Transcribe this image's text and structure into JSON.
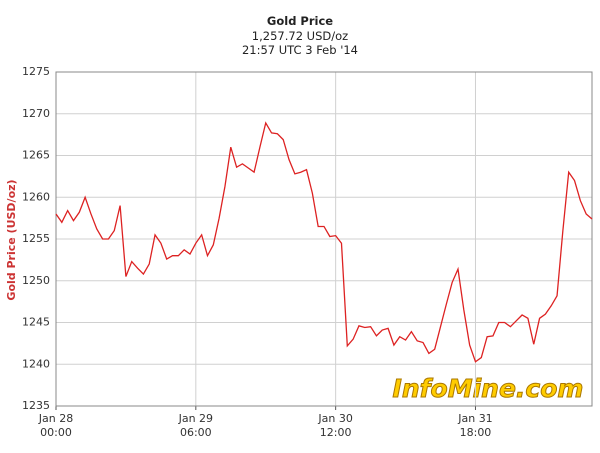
{
  "chart_data": {
    "type": "line",
    "title": "Gold Price",
    "subtitle": "1,257.72 USD/oz",
    "timestamp": "21:57 UTC 3 Feb '14",
    "y_label": "Gold Price (USD/oz)",
    "watermark": "InfoMine.com",
    "categories": [
      "Jan 28\n00:00",
      null,
      null,
      null,
      null,
      null,
      null,
      null,
      null,
      null,
      null,
      null,
      null,
      null,
      null,
      null,
      null,
      null,
      null,
      null,
      null,
      null,
      null,
      null,
      "Jan 29\n06:00",
      null,
      null,
      null,
      null,
      null,
      null,
      null,
      null,
      null,
      null,
      null,
      null,
      null,
      null,
      null,
      null,
      null,
      null,
      null,
      null,
      null,
      null,
      null,
      "Jan 30\n12:00",
      null,
      null,
      null,
      null,
      null,
      null,
      null,
      null,
      null,
      null,
      null,
      null,
      null,
      null,
      null,
      null,
      null,
      null,
      null,
      null,
      null,
      null,
      null,
      "Jan 31\n18:00",
      null,
      null,
      null,
      null,
      null,
      null,
      null,
      null,
      null,
      null,
      null,
      null,
      null,
      null,
      null,
      null,
      null,
      null,
      null,
      null
    ],
    "series": [
      {
        "name": "Gold Price",
        "color": "#dd2222",
        "values": [
          1258,
          1257,
          1258.4,
          1257.2,
          1258.2,
          1260.0,
          1258,
          1256.2,
          1255,
          1255,
          1256,
          1259,
          1250.5,
          1252.3,
          1251.5,
          1250.8,
          1252,
          1255.5,
          1254.5,
          1252.6,
          1253,
          1253,
          1253.7,
          1253.2,
          1254.5,
          1255.5,
          1253,
          1254.3,
          1257.5,
          1261.3,
          1266,
          1263.6,
          1264,
          1263.5,
          1263,
          1266,
          1268.9,
          1267.7,
          1267.6,
          1266.9,
          1264.5,
          1262.8,
          1263,
          1263.3,
          1260.5,
          1256.5,
          1256.5,
          1255.3,
          1255.4,
          1254.5,
          1242.2,
          1243,
          1244.6,
          1244.4,
          1244.5,
          1243.4,
          1244.1,
          1244.3,
          1242.3,
          1243.3,
          1242.9,
          1243.9,
          1242.8,
          1242.6,
          1241.3,
          1241.8,
          1244.5,
          1247.2,
          1249.8,
          1251.4,
          1246.5,
          1242.3,
          1240.3,
          1240.8,
          1243.3,
          1243.4,
          1245,
          1245,
          1244.5,
          1245.2,
          1245.9,
          1245.5,
          1242.4,
          1245.5,
          1246,
          1247,
          1248.2,
          1256,
          1263,
          1262,
          1259.6,
          1258,
          1257.4
        ]
      }
    ],
    "ylim": [
      1235,
      1275
    ],
    "yticks": [
      1235,
      1240,
      1245,
      1250,
      1255,
      1260,
      1265,
      1270,
      1275
    ],
    "grid": true
  }
}
